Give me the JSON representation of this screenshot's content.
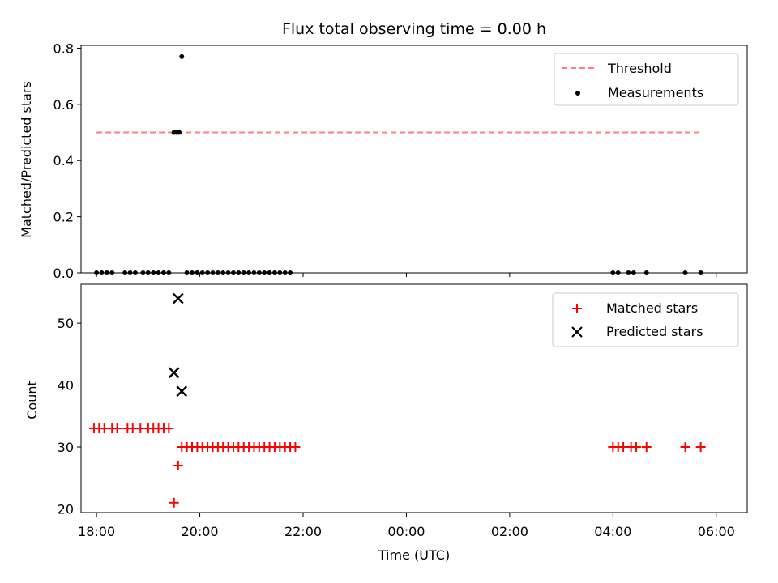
{
  "chart_data": [
    {
      "type": "scatter",
      "title": "Flux total observing time = 0.00 h",
      "xlabel": "",
      "ylabel": "Matched/Predicted stars",
      "x_unit": "hours since 18:00 UTC (x axis shown as clock time)",
      "xlim": [
        -0.3,
        12.6
      ],
      "ylim": [
        0,
        0.81
      ],
      "yticks": [
        0.0,
        0.2,
        0.4,
        0.6,
        0.8
      ],
      "legend_position": "top-right",
      "threshold": {
        "name": "Threshold",
        "y": 0.5,
        "x_range": [
          0.0,
          11.7
        ],
        "color": "#ff7f7f"
      },
      "series": [
        {
          "name": "Measurements",
          "color": "#000000",
          "points": [
            [
              0.0,
              0
            ],
            [
              0.1,
              0
            ],
            [
              0.2,
              0
            ],
            [
              0.3,
              0
            ],
            [
              0.55,
              0
            ],
            [
              0.65,
              0
            ],
            [
              0.75,
              0
            ],
            [
              0.9,
              0
            ],
            [
              1.0,
              0
            ],
            [
              1.1,
              0
            ],
            [
              1.2,
              0
            ],
            [
              1.3,
              0
            ],
            [
              1.4,
              0
            ],
            [
              1.5,
              0.5
            ],
            [
              1.55,
              0.5
            ],
            [
              1.6,
              0.5
            ],
            [
              1.65,
              0.77
            ],
            [
              1.75,
              0
            ],
            [
              1.85,
              0
            ],
            [
              1.95,
              0
            ],
            [
              2.05,
              0
            ],
            [
              2.15,
              0
            ],
            [
              2.25,
              0
            ],
            [
              2.35,
              0
            ],
            [
              2.45,
              0
            ],
            [
              2.55,
              0
            ],
            [
              2.65,
              0
            ],
            [
              2.75,
              0
            ],
            [
              2.85,
              0
            ],
            [
              2.95,
              0
            ],
            [
              3.05,
              0
            ],
            [
              3.15,
              0
            ],
            [
              3.25,
              0
            ],
            [
              3.35,
              0
            ],
            [
              3.45,
              0
            ],
            [
              3.55,
              0
            ],
            [
              3.65,
              0
            ],
            [
              3.75,
              0
            ],
            [
              10.0,
              0
            ],
            [
              10.1,
              0
            ],
            [
              10.3,
              0
            ],
            [
              10.4,
              0
            ],
            [
              10.65,
              0
            ],
            [
              11.4,
              0
            ],
            [
              11.7,
              0
            ]
          ]
        }
      ]
    },
    {
      "type": "scatter",
      "title": "",
      "xlabel": "Time (UTC)",
      "ylabel": "Count",
      "x_unit": "hours since 18:00 UTC (x axis shown as clock time)",
      "xlim": [
        -0.3,
        12.6
      ],
      "ylim": [
        19.4,
        56.3
      ],
      "yticks": [
        20,
        30,
        40,
        50
      ],
      "xticks": [
        0,
        2,
        4,
        6,
        8,
        10,
        12
      ],
      "xtick_labels": [
        "18:00",
        "20:00",
        "22:00",
        "00:00",
        "02:00",
        "04:00",
        "06:00"
      ],
      "legend_position": "top-right",
      "series": [
        {
          "name": "Matched stars",
          "marker": "+",
          "color": "#ff0000",
          "points": [
            [
              -0.05,
              33
            ],
            [
              0.05,
              33
            ],
            [
              0.15,
              33
            ],
            [
              0.3,
              33
            ],
            [
              0.4,
              33
            ],
            [
              0.6,
              33
            ],
            [
              0.7,
              33
            ],
            [
              0.85,
              33
            ],
            [
              1.0,
              33
            ],
            [
              1.1,
              33
            ],
            [
              1.2,
              33
            ],
            [
              1.3,
              33
            ],
            [
              1.4,
              33
            ],
            [
              1.5,
              21
            ],
            [
              1.58,
              27
            ],
            [
              1.65,
              30
            ],
            [
              1.75,
              30
            ],
            [
              1.85,
              30
            ],
            [
              1.95,
              30
            ],
            [
              2.05,
              30
            ],
            [
              2.15,
              30
            ],
            [
              2.25,
              30
            ],
            [
              2.35,
              30
            ],
            [
              2.45,
              30
            ],
            [
              2.55,
              30
            ],
            [
              2.65,
              30
            ],
            [
              2.75,
              30
            ],
            [
              2.85,
              30
            ],
            [
              2.95,
              30
            ],
            [
              3.05,
              30
            ],
            [
              3.15,
              30
            ],
            [
              3.25,
              30
            ],
            [
              3.35,
              30
            ],
            [
              3.45,
              30
            ],
            [
              3.55,
              30
            ],
            [
              3.65,
              30
            ],
            [
              3.75,
              30
            ],
            [
              3.85,
              30
            ],
            [
              10.0,
              30
            ],
            [
              10.1,
              30
            ],
            [
              10.2,
              30
            ],
            [
              10.35,
              30
            ],
            [
              10.45,
              30
            ],
            [
              10.65,
              30
            ],
            [
              11.4,
              30
            ],
            [
              11.7,
              30
            ]
          ]
        },
        {
          "name": "Predicted stars",
          "marker": "x",
          "color": "#000000",
          "points": [
            [
              1.5,
              42
            ],
            [
              1.58,
              54
            ],
            [
              1.65,
              39
            ]
          ]
        }
      ]
    }
  ]
}
